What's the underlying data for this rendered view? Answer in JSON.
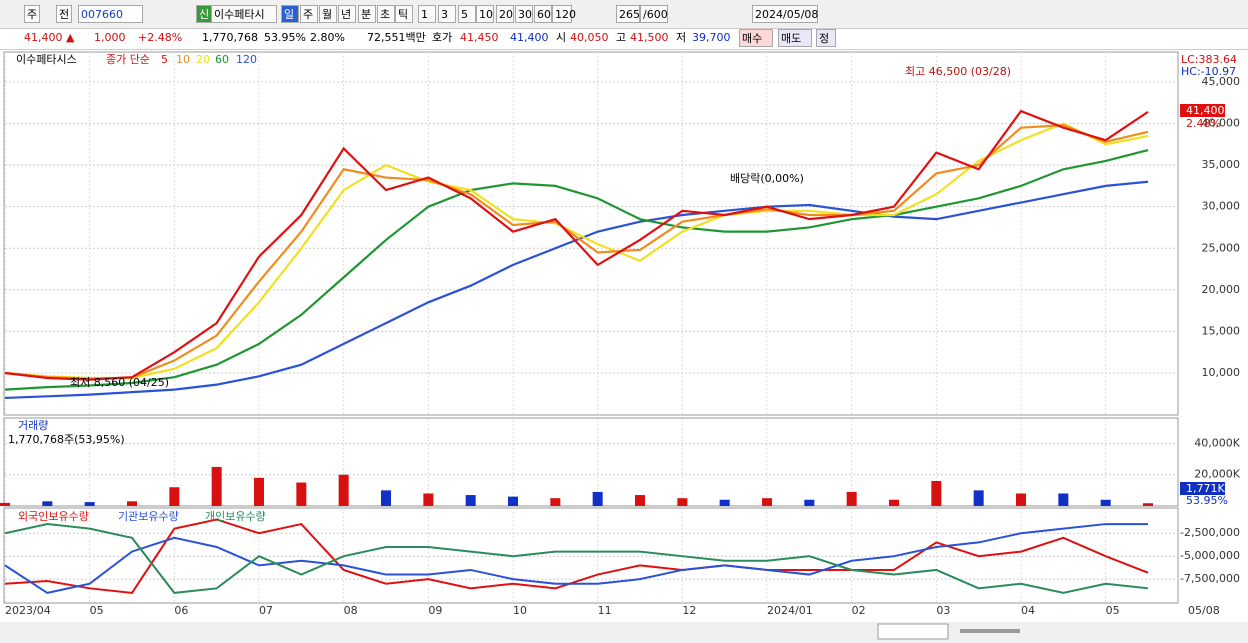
{
  "toolbar": {
    "items": [
      "주",
      "전",
      "007660",
      "신",
      "이수페타시",
      "일",
      "주",
      "월",
      "년",
      "분",
      "초",
      "틱",
      "1",
      "3",
      "5",
      "10",
      "20",
      "30",
      "60",
      "120",
      "265",
      "/600",
      "2024/05/08"
    ]
  },
  "quote_bar": {
    "items": [
      "41,400 ▲",
      "1,000",
      "+2.48%",
      "1,770,768",
      "53.95%",
      "2.80%",
      "72,551백만",
      "호가",
      "41,450",
      "41,400",
      "시",
      "40,050",
      "고",
      "41,500",
      "저",
      "39,700"
    ],
    "buttons": [
      "매수",
      "매도",
      "정"
    ]
  },
  "chart_data": [
    {
      "type": "line",
      "title": "이수페타시스",
      "subtitle": "종가 단순",
      "right_labels": [
        "LC:383.64",
        "HC:-10.97"
      ],
      "last_price_label": "41,400",
      "last_change_label": "2.48%",
      "annotations": [
        "최고 46,500 (03/28)",
        "최저 8,560 (04/25)",
        "배당락(0,00%)"
      ],
      "ylim": [
        4950,
        48600
      ],
      "yticks": [
        {
          "value": 10000,
          "label": "10,000"
        },
        {
          "value": 15000,
          "label": "15,000"
        },
        {
          "value": 20000,
          "label": "20,000"
        },
        {
          "value": 25000,
          "label": "25,000"
        },
        {
          "value": 30000,
          "label": "30,000"
        },
        {
          "value": 35000,
          "label": "35,000"
        },
        {
          "value": 40000,
          "label": "40,000"
        },
        {
          "value": 45000,
          "label": "45,000"
        }
      ],
      "grid": true,
      "series": [
        {
          "name": "120",
          "color": "#2a52d8",
          "values": [
            7000,
            7200,
            7400,
            7700,
            8000,
            8600,
            9600,
            11000,
            13500,
            16000,
            18500,
            20500,
            23000,
            25000,
            27000,
            28200,
            29000,
            29500,
            30000,
            30200,
            29500,
            28800,
            28500,
            29500,
            30500,
            31500,
            32500,
            33000
          ]
        },
        {
          "name": "60",
          "color": "#1e9632",
          "values": [
            8000,
            8300,
            8500,
            8800,
            9500,
            11000,
            13500,
            17000,
            21500,
            26000,
            30000,
            32000,
            32800,
            32500,
            31000,
            28500,
            27500,
            27000,
            27000,
            27500,
            28500,
            29000,
            30000,
            31000,
            32500,
            34500,
            35500,
            36800
          ]
        },
        {
          "name": "20",
          "color": "#f0e020",
          "values": [
            10000,
            9600,
            9400,
            9400,
            10500,
            13000,
            18500,
            25000,
            32000,
            35000,
            33000,
            32000,
            28500,
            28000,
            25500,
            23500,
            27000,
            29000,
            29500,
            29500,
            29000,
            29000,
            31500,
            35500,
            38000,
            40000,
            37500,
            38500
          ]
        },
        {
          "name": "10",
          "color": "#f08c1e",
          "values": [
            10000,
            9500,
            9300,
            9450,
            11500,
            14500,
            21000,
            27000,
            34500,
            33500,
            33200,
            31500,
            27800,
            28200,
            24500,
            24800,
            28200,
            29000,
            29700,
            29000,
            29000,
            29500,
            34000,
            35000,
            39500,
            39800,
            37800,
            39000
          ]
        },
        {
          "name": "5",
          "color": "#e01010",
          "values": [
            10000,
            9400,
            9200,
            9500,
            12500,
            16000,
            24000,
            29000,
            37000,
            32000,
            33500,
            31000,
            27000,
            28500,
            23000,
            26000,
            29500,
            29000,
            30000,
            28500,
            29000,
            30000,
            36500,
            34500,
            41500,
            39500,
            38000,
            41400
          ]
        }
      ]
    },
    {
      "type": "bar",
      "title": "거래량",
      "subtitle": "1,770,768주(53,95%)",
      "last_value_label": "1,771K",
      "last_ratio_label": "53.95%",
      "ylim": [
        0,
        55000
      ],
      "yticks": [
        {
          "value": 20000,
          "label": "20,000K"
        },
        {
          "value": 40000,
          "label": "40,000K"
        }
      ],
      "grid": true,
      "up_color": "#d81010",
      "down_color": "#1030c8",
      "values": [
        2000,
        3000,
        2500,
        3000,
        12000,
        25000,
        18000,
        15000,
        20000,
        10000,
        8000,
        7000,
        6000,
        5000,
        9000,
        7000,
        5000,
        4000,
        5000,
        4000,
        9000,
        4000,
        16000,
        10000,
        8000,
        8000,
        4000,
        1771
      ]
    },
    {
      "type": "line",
      "categories": [
        "2023/04",
        null,
        "05",
        null,
        "06",
        null,
        "07",
        null,
        "08",
        null,
        "09",
        null,
        "10",
        null,
        "11",
        null,
        "12",
        null,
        "2024/01",
        null,
        "02",
        null,
        "03",
        null,
        "04",
        null,
        "05",
        null
      ],
      "x_end_label": "05/08",
      "ylim": [
        -10100000,
        250000
      ],
      "yticks": [
        {
          "value": -7500000,
          "label": "-7,500,000"
        },
        {
          "value": -5000000,
          "label": "-5,000,000"
        },
        {
          "value": -2500000,
          "label": "-2,500,000"
        }
      ],
      "grid": true,
      "series": [
        {
          "name": "외국인보유수량",
          "color": "#e01010",
          "values": [
            -8000000,
            -7700000,
            -8500000,
            -9000000,
            -2000000,
            -1000000,
            -2500000,
            -1500000,
            -6500000,
            -8000000,
            -7500000,
            -8500000,
            -8000000,
            -8500000,
            -7000000,
            -6000000,
            -6500000,
            -6000000,
            -6500000,
            -6500000,
            -6500000,
            -6500000,
            -3500000,
            -5000000,
            -4500000,
            -3000000,
            -5000000,
            -6800000
          ]
        },
        {
          "name": "기관보유수량",
          "color": "#2a52d8",
          "values": [
            -6000000,
            -9000000,
            -8000000,
            -4500000,
            -3000000,
            -4000000,
            -6000000,
            -5500000,
            -6000000,
            -7000000,
            -7000000,
            -6500000,
            -7500000,
            -8000000,
            -8000000,
            -7500000,
            -6500000,
            -6000000,
            -6500000,
            -7000000,
            -5500000,
            -5000000,
            -4000000,
            -3500000,
            -2500000,
            -2000000,
            -1500000,
            -1500000
          ]
        },
        {
          "name": "개인보유수량",
          "color": "#2a8c5a",
          "values": [
            -2500000,
            -1500000,
            -2000000,
            -3000000,
            -9000000,
            -8500000,
            -5000000,
            -7000000,
            -5000000,
            -4000000,
            -4000000,
            -4500000,
            -5000000,
            -4500000,
            -4500000,
            -4500000,
            -5000000,
            -5500000,
            -5500000,
            -5000000,
            -6500000,
            -7000000,
            -6500000,
            -8500000,
            -8000000,
            -9000000,
            -8000000,
            -8500000
          ]
        }
      ]
    }
  ]
}
